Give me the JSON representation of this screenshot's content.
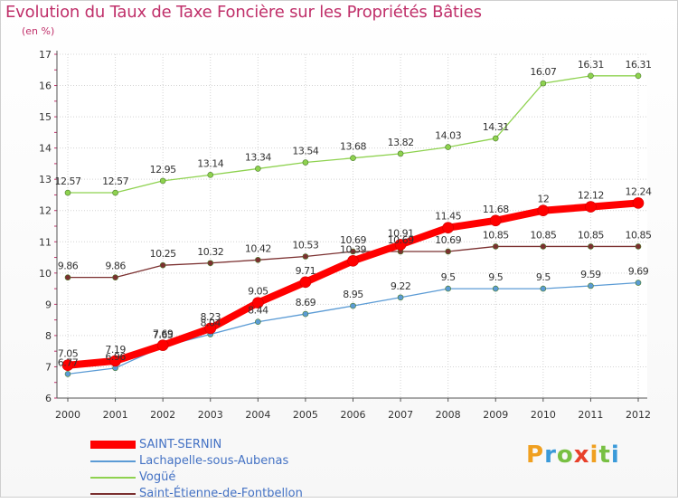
{
  "chart_data": {
    "type": "line",
    "title": "Evolution du Taux de Taxe Foncière sur les Propriétés Bâties",
    "subtitle": "(en %)",
    "xlabel": "",
    "ylabel": "",
    "x": [
      "2000",
      "2001",
      "2002",
      "2003",
      "2004",
      "2005",
      "2006",
      "2007",
      "2008",
      "2009",
      "2010",
      "2011",
      "2012"
    ],
    "ylim": [
      6,
      17
    ],
    "yticks": [
      "6",
      "7",
      "8",
      "9",
      "10",
      "11",
      "12",
      "13",
      "14",
      "15",
      "16",
      "17"
    ],
    "grid": true,
    "legend_position": "bottom-left",
    "series": [
      {
        "name": "SAINT-SERNIN",
        "color": "#ff0000",
        "values": [
          7.05,
          7.19,
          7.69,
          8.23,
          9.05,
          9.71,
          10.39,
          10.91,
          11.45,
          11.68,
          12,
          12.12,
          12.24
        ],
        "labels": [
          "7.05",
          "7.19",
          "7.69",
          "8.23",
          "9.05",
          "9.71",
          "10.39",
          "10.91",
          "11.45",
          "11.68",
          "12",
          "12.12",
          "12.24"
        ]
      },
      {
        "name": "Lachapelle-sous-Aubenas",
        "color": "#5b9bd5",
        "values": [
          6.77,
          6.96,
          7.65,
          8.04,
          8.44,
          8.69,
          8.95,
          9.22,
          9.5,
          9.5,
          9.5,
          9.59,
          9.69
        ],
        "labels": [
          "6.77",
          "6.96",
          "7.65",
          "8.04",
          "8.44",
          "8.69",
          "8.95",
          "9.22",
          "9.5",
          "9.5",
          "9.5",
          "9.59",
          "9.69"
        ]
      },
      {
        "name": "Vogüé",
        "color": "#8ed24f",
        "values": [
          12.57,
          12.57,
          12.95,
          13.14,
          13.34,
          13.54,
          13.68,
          13.82,
          14.03,
          14.31,
          16.07,
          16.31,
          16.31
        ],
        "labels": [
          "12.57",
          "12.57",
          "12.95",
          "13.14",
          "13.34",
          "13.54",
          "13.68",
          "13.82",
          "14.03",
          "14.31",
          "16.07",
          "16.31",
          "16.31"
        ]
      },
      {
        "name": "Saint-Étienne-de-Fontbellon",
        "color": "#7b3030",
        "values": [
          9.86,
          9.86,
          10.25,
          10.32,
          10.42,
          10.53,
          10.69,
          10.69,
          10.69,
          10.85,
          10.85,
          10.85,
          10.85
        ],
        "labels": [
          "9.86",
          "9.86",
          "10.25",
          "10.32",
          "10.42",
          "10.53",
          "10.69",
          "10.69",
          "10.69",
          "10.85",
          "10.85",
          "10.85",
          "10.85"
        ]
      }
    ]
  },
  "brand": {
    "text": "Proxiti"
  }
}
